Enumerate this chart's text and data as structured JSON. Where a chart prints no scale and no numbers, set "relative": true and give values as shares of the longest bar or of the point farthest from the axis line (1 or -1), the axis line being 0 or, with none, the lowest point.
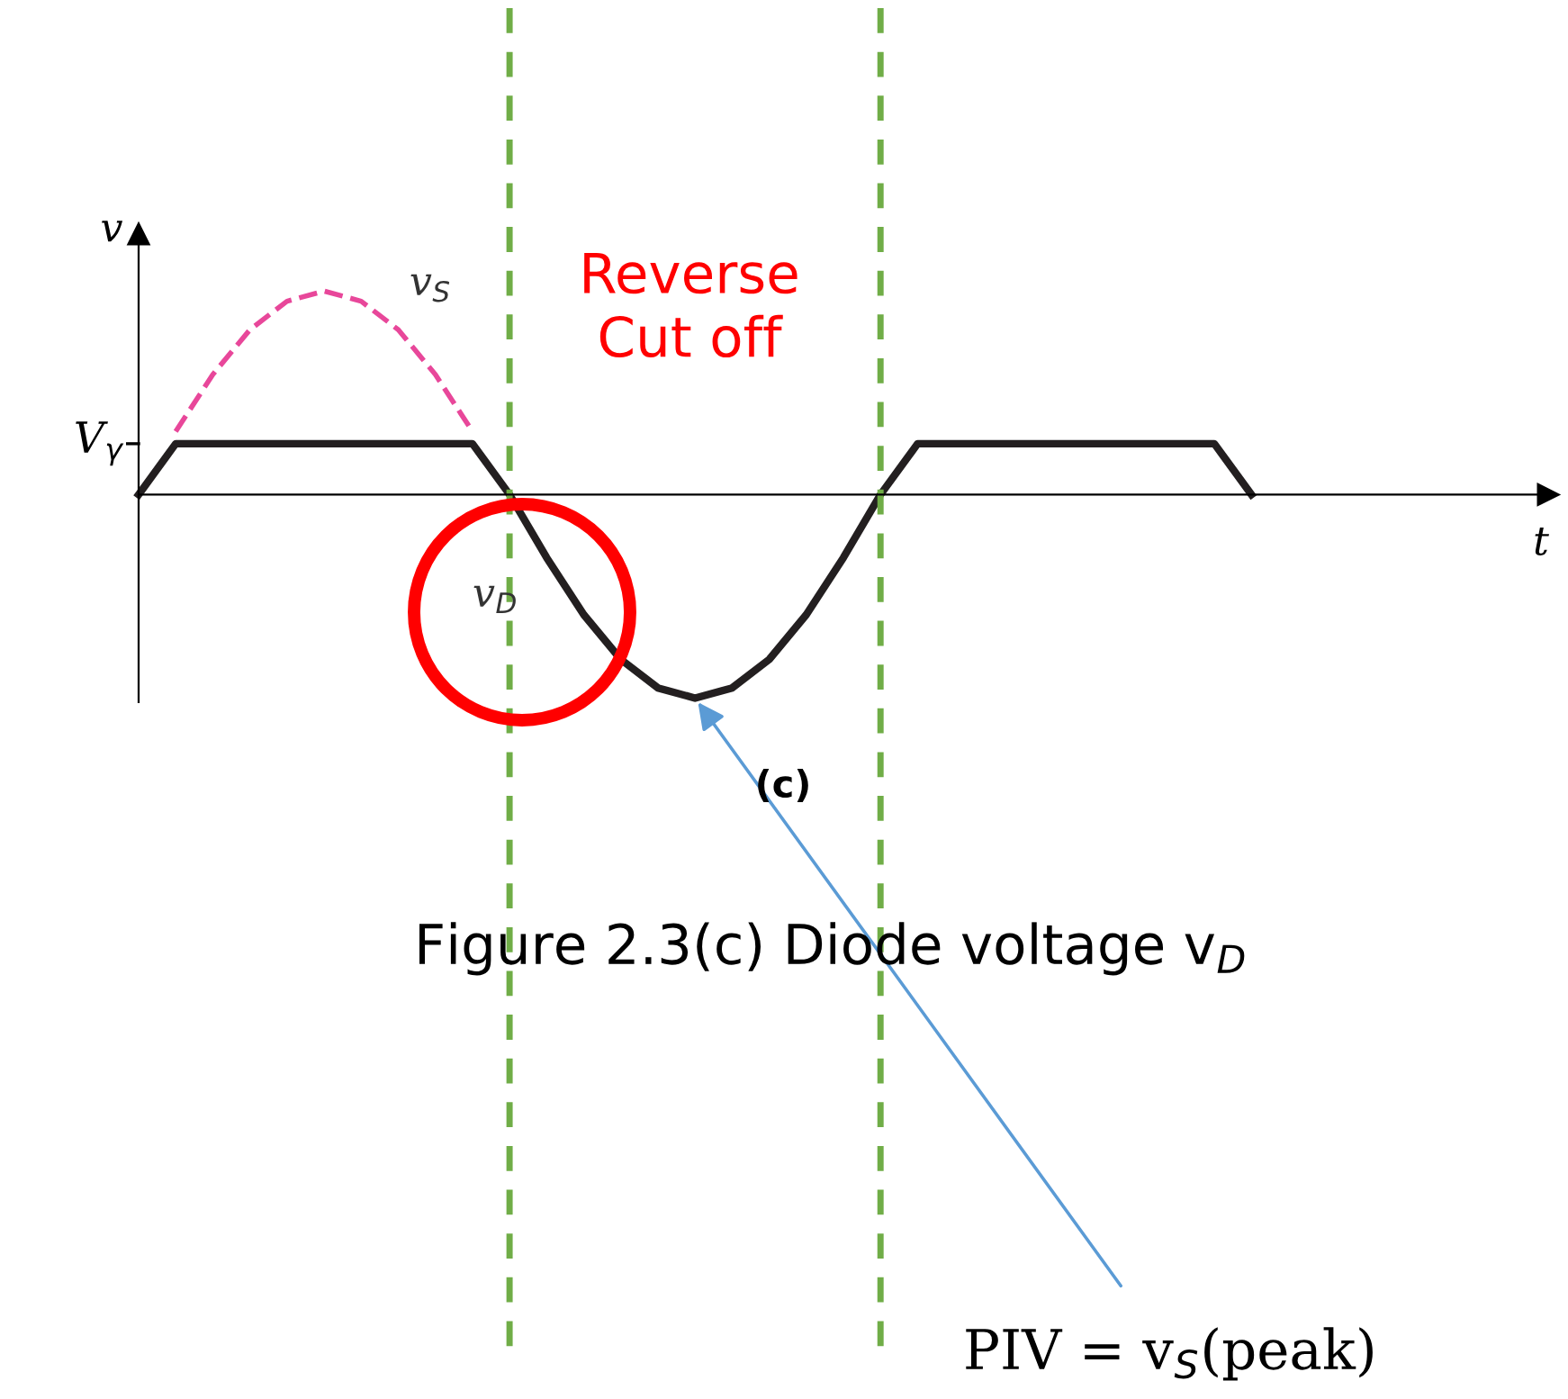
{
  "chart_data": {
    "type": "line",
    "relative": true,
    "xlabel": "t",
    "ylabel": "v",
    "categories": [
      null,
      null,
      null,
      null,
      null,
      null,
      null,
      null,
      null,
      null,
      null,
      null,
      null,
      null,
      null,
      null,
      null,
      null,
      null,
      null,
      null,
      null,
      null,
      null,
      null,
      null,
      null,
      null,
      null,
      null,
      null,
      null,
      null,
      null,
      null,
      null,
      null,
      null,
      null
    ],
    "series": [
      {
        "name": "v$_{D}$",
        "color": "#231f20",
        "line_style": "solid",
        "values": [
          0,
          0.25,
          0.25,
          0.25,
          0.25,
          0.25,
          0.25,
          0.25,
          0.25,
          0.25,
          0,
          -0.31,
          -0.59,
          -0.81,
          -0.95,
          -1,
          -0.95,
          -0.81,
          -0.59,
          -0.31,
          0,
          0.25,
          0.25,
          0.25,
          0.25,
          0.25,
          0.25,
          0.25,
          0.25,
          0.25,
          0,
          null,
          null,
          null,
          null,
          null,
          null,
          null,
          null
        ]
      },
      {
        "name": "v$_{S}$",
        "color": "#e8479a",
        "line_style": "dashed",
        "values": [
          null,
          0.31,
          0.59,
          0.81,
          0.95,
          1,
          0.95,
          0.81,
          0.59,
          0.31,
          null,
          null,
          null,
          null,
          null,
          null,
          null,
          null,
          null,
          null,
          null,
          null,
          null,
          null,
          null,
          null,
          null,
          null,
          null,
          null,
          null,
          null,
          null,
          null,
          null,
          null,
          null,
          null,
          null
        ]
      }
    ],
    "annotations": [
      "V$_{γ}$",
      "Reverse\nCut off",
      "(c)",
      "Figure 2.3(c) Diode voltage v$_{D}$",
      "PIV = v$_{S}$(peak)"
    ]
  }
}
